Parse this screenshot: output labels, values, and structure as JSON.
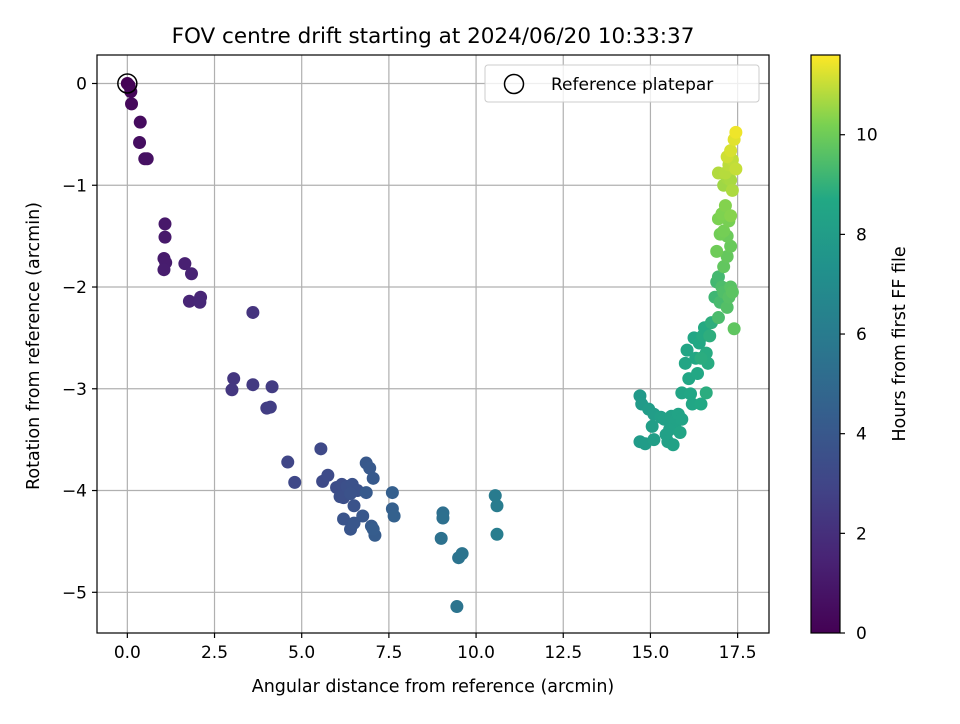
{
  "chart_data": {
    "type": "scatter",
    "title": "FOV centre drift starting at 2024/06/20 10:33:37",
    "xlabel": "Angular distance from reference (arcmin)",
    "ylabel": "Rotation from reference (arcmin)",
    "xlim": [
      -0.87,
      18.4
    ],
    "ylim": [
      -5.4,
      0.28
    ],
    "xticks": [
      0.0,
      2.5,
      5.0,
      7.5,
      10.0,
      12.5,
      15.0,
      17.5
    ],
    "xtick_labels": [
      "0.0",
      "2.5",
      "5.0",
      "7.5",
      "10.0",
      "12.5",
      "15.0",
      "17.5"
    ],
    "yticks": [
      0,
      -1,
      -2,
      -3,
      -4,
      -5
    ],
    "ytick_labels": [
      "0",
      "−1",
      "−2",
      "−3",
      "−4",
      "−5"
    ],
    "grid": true,
    "colormap": "viridis",
    "colorbar": {
      "label": "Hours from first FF file",
      "range": [
        0,
        11.6
      ],
      "ticks": [
        0,
        2,
        4,
        6,
        8,
        10
      ],
      "tick_labels": [
        "0",
        "2",
        "4",
        "6",
        "8",
        "10"
      ]
    },
    "legend": {
      "position": "top-right",
      "label": "Reference platepar"
    },
    "reference_point": [
      0,
      0
    ],
    "points": [
      [
        0.0,
        0.0,
        0.0
      ],
      [
        0.05,
        -0.02,
        0.1
      ],
      [
        0.1,
        -0.08,
        0.2
      ],
      [
        0.12,
        -0.2,
        0.3
      ],
      [
        0.37,
        -0.38,
        0.45
      ],
      [
        0.35,
        -0.58,
        0.55
      ],
      [
        0.5,
        -0.74,
        0.65
      ],
      [
        0.57,
        -0.74,
        0.7
      ],
      [
        1.08,
        -1.38,
        1.0
      ],
      [
        1.08,
        -1.51,
        1.05
      ],
      [
        1.05,
        -1.72,
        1.1
      ],
      [
        1.1,
        -1.76,
        1.15
      ],
      [
        1.05,
        -1.83,
        1.2
      ],
      [
        1.65,
        -1.77,
        1.35
      ],
      [
        1.84,
        -1.87,
        1.45
      ],
      [
        1.78,
        -2.14,
        1.55
      ],
      [
        2.1,
        -2.1,
        1.6
      ],
      [
        2.08,
        -2.15,
        1.65
      ],
      [
        3.6,
        -2.25,
        2.2
      ],
      [
        3.05,
        -2.9,
        2.3
      ],
      [
        3.0,
        -3.01,
        2.35
      ],
      [
        3.6,
        -2.96,
        2.45
      ],
      [
        4.15,
        -2.98,
        2.55
      ],
      [
        4.0,
        -3.19,
        2.6
      ],
      [
        4.1,
        -3.18,
        2.65
      ],
      [
        4.6,
        -3.72,
        3.0
      ],
      [
        4.8,
        -3.92,
        3.1
      ],
      [
        5.55,
        -3.59,
        3.2
      ],
      [
        5.6,
        -3.91,
        3.25
      ],
      [
        5.75,
        -3.85,
        3.3
      ],
      [
        6.0,
        -3.97,
        3.4
      ],
      [
        6.15,
        -3.94,
        3.45
      ],
      [
        6.2,
        -4.07,
        3.5
      ],
      [
        6.1,
        -4.06,
        3.5
      ],
      [
        6.3,
        -3.96,
        3.55
      ],
      [
        6.45,
        -3.94,
        3.6
      ],
      [
        6.6,
        -4.0,
        3.65
      ],
      [
        6.4,
        -4.03,
        3.7
      ],
      [
        6.5,
        -4.15,
        3.75
      ],
      [
        6.2,
        -4.28,
        3.8
      ],
      [
        6.4,
        -4.38,
        3.85
      ],
      [
        6.5,
        -4.32,
        3.9
      ],
      [
        6.75,
        -4.25,
        3.95
      ],
      [
        6.85,
        -3.73,
        4.0
      ],
      [
        6.95,
        -3.78,
        4.05
      ],
      [
        7.05,
        -3.88,
        4.1
      ],
      [
        6.85,
        -4.02,
        4.15
      ],
      [
        7.0,
        -4.35,
        4.2
      ],
      [
        7.1,
        -4.44,
        4.25
      ],
      [
        7.05,
        -4.38,
        4.3
      ],
      [
        7.6,
        -4.02,
        4.4
      ],
      [
        7.6,
        -4.18,
        4.45
      ],
      [
        7.65,
        -4.25,
        4.5
      ],
      [
        9.05,
        -4.22,
        5.3
      ],
      [
        9.05,
        -4.27,
        5.35
      ],
      [
        9.0,
        -4.47,
        5.4
      ],
      [
        9.5,
        -4.66,
        5.5
      ],
      [
        9.6,
        -4.62,
        5.55
      ],
      [
        9.45,
        -5.14,
        5.6
      ],
      [
        10.55,
        -4.05,
        6.0
      ],
      [
        10.6,
        -4.15,
        6.05
      ],
      [
        10.6,
        -4.43,
        6.1
      ],
      [
        14.7,
        -3.07,
        7.8
      ],
      [
        14.75,
        -3.15,
        7.85
      ],
      [
        14.7,
        -3.52,
        7.9
      ],
      [
        14.85,
        -3.54,
        7.95
      ],
      [
        14.95,
        -3.2,
        8.0
      ],
      [
        15.1,
        -3.25,
        8.05
      ],
      [
        15.1,
        -3.5,
        8.1
      ],
      [
        15.05,
        -3.37,
        8.1
      ],
      [
        15.3,
        -3.28,
        8.15
      ],
      [
        15.4,
        -3.3,
        8.2
      ],
      [
        15.45,
        -3.45,
        8.2
      ],
      [
        15.5,
        -3.52,
        8.25
      ],
      [
        15.55,
        -3.4,
        8.25
      ],
      [
        15.6,
        -3.27,
        8.3
      ],
      [
        15.65,
        -3.55,
        8.3
      ],
      [
        15.7,
        -3.35,
        8.35
      ],
      [
        15.75,
        -3.3,
        8.35
      ],
      [
        15.8,
        -3.25,
        8.4
      ],
      [
        15.9,
        -3.3,
        8.4
      ],
      [
        15.85,
        -3.43,
        8.45
      ],
      [
        15.9,
        -3.04,
        8.45
      ],
      [
        16.0,
        -2.75,
        8.5
      ],
      [
        16.05,
        -2.62,
        8.5
      ],
      [
        16.1,
        -2.9,
        8.55
      ],
      [
        16.15,
        -3.05,
        8.55
      ],
      [
        16.2,
        -3.15,
        8.6
      ],
      [
        16.25,
        -2.5,
        8.6
      ],
      [
        16.3,
        -2.7,
        8.65
      ],
      [
        16.35,
        -2.85,
        8.65
      ],
      [
        16.4,
        -2.55,
        8.7
      ],
      [
        16.45,
        -3.15,
        8.7
      ],
      [
        16.5,
        -2.48,
        8.75
      ],
      [
        16.55,
        -2.4,
        8.75
      ],
      [
        16.6,
        -2.65,
        8.8
      ],
      [
        16.65,
        -2.75,
        8.8
      ],
      [
        16.45,
        -2.7,
        8.85
      ],
      [
        16.6,
        -3.04,
        8.85
      ],
      [
        16.7,
        -2.48,
        8.9
      ],
      [
        16.75,
        -2.35,
        8.9
      ],
      [
        16.85,
        -2.1,
        9.2
      ],
      [
        16.9,
        -1.95,
        9.25
      ],
      [
        16.95,
        -1.9,
        9.3
      ],
      [
        17.0,
        -2.15,
        9.35
      ],
      [
        16.95,
        -2.3,
        9.4
      ],
      [
        17.05,
        -2.0,
        9.45
      ],
      [
        17.1,
        -2.05,
        9.5
      ],
      [
        17.2,
        -2.2,
        9.55
      ],
      [
        17.25,
        -2.1,
        9.6
      ],
      [
        17.3,
        -2.0,
        9.65
      ],
      [
        17.35,
        -2.05,
        9.7
      ],
      [
        17.4,
        -2.41,
        9.75
      ],
      [
        17.1,
        -1.8,
        9.8
      ],
      [
        17.2,
        -1.7,
        9.85
      ],
      [
        17.3,
        -1.6,
        9.9
      ],
      [
        17.2,
        -1.5,
        9.95
      ],
      [
        16.9,
        -1.65,
        10.0
      ],
      [
        17.0,
        -1.48,
        10.05
      ],
      [
        17.1,
        -1.45,
        10.1
      ],
      [
        17.25,
        -1.35,
        10.15
      ],
      [
        16.95,
        -1.33,
        10.2
      ],
      [
        17.05,
        -1.28,
        10.25
      ],
      [
        17.15,
        -1.2,
        10.3
      ],
      [
        17.3,
        -1.3,
        10.35
      ],
      [
        17.1,
        -1.0,
        10.6
      ],
      [
        17.2,
        -0.93,
        10.65
      ],
      [
        17.3,
        -0.95,
        10.7
      ],
      [
        17.35,
        -1.05,
        10.75
      ],
      [
        16.95,
        -0.88,
        10.8
      ],
      [
        17.15,
        -0.88,
        10.85
      ],
      [
        17.25,
        -0.8,
        10.9
      ],
      [
        17.35,
        -0.75,
        10.95
      ],
      [
        17.45,
        -0.84,
        11.0
      ],
      [
        17.2,
        -0.72,
        11.1
      ],
      [
        17.3,
        -0.66,
        11.2
      ],
      [
        17.4,
        -0.55,
        11.3
      ],
      [
        17.45,
        -0.48,
        11.45
      ]
    ]
  }
}
